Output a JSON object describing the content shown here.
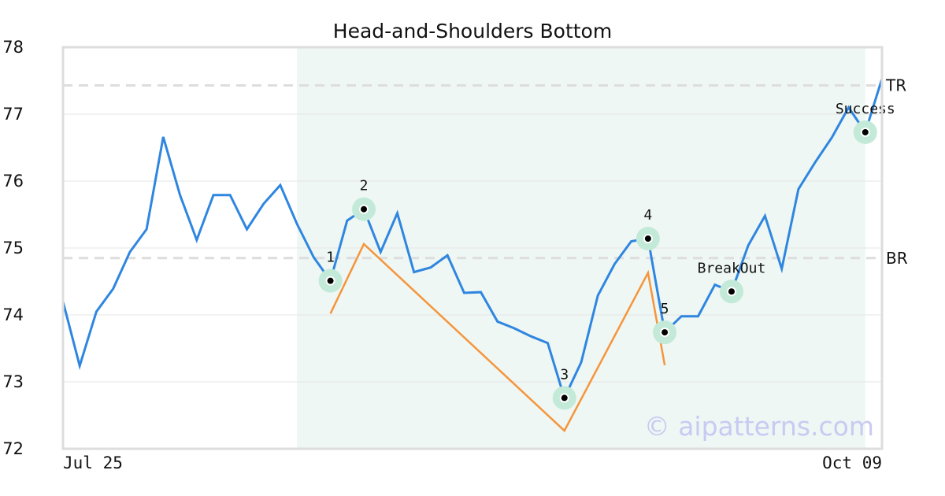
{
  "chart_data": {
    "type": "line",
    "title": "Head-and-Shoulders Bottom",
    "xlabel": "",
    "ylabel": "",
    "ylim": [
      72,
      78
    ],
    "y_ticks": [
      "72",
      "73",
      "74",
      "75",
      "76",
      "77",
      "78"
    ],
    "x_tick_labels": [
      "Jul 25",
      "Oct 09"
    ],
    "grid": "horizontal",
    "series": [
      {
        "color": "#2f86e0",
        "values": [
          74.2,
          73.24,
          74.05,
          74.39,
          74.94,
          75.28,
          76.66,
          75.79,
          75.12,
          75.79,
          75.79,
          75.28,
          75.66,
          75.94,
          75.36,
          74.86,
          74.51,
          75.41,
          75.58,
          74.94,
          75.52,
          74.64,
          74.71,
          74.89,
          74.33,
          74.34,
          73.9,
          73.8,
          73.68,
          73.58,
          72.76,
          73.29,
          74.29,
          74.76,
          75.1,
          75.14,
          73.74,
          73.98,
          73.98,
          74.45,
          74.35,
          75.04,
          75.48,
          74.69,
          75.88,
          76.28,
          76.65,
          77.1,
          76.73,
          77.53
        ]
      }
    ],
    "zigzag": {
      "color": "#f5953c",
      "points": [
        [
          16,
          74.02
        ],
        [
          18,
          75.06
        ],
        [
          30,
          72.27
        ],
        [
          35,
          74.63
        ],
        [
          36,
          73.25
        ]
      ]
    },
    "highlight_range": [
      14,
      48
    ],
    "levels": [
      {
        "label": "TR",
        "value": 77.43
      },
      {
        "label": "BR",
        "value": 74.85
      }
    ],
    "markers": [
      {
        "label": "1",
        "index": 16,
        "value": 74.51,
        "label_pos": "above"
      },
      {
        "label": "2",
        "index": 18,
        "value": 75.58,
        "label_pos": "above"
      },
      {
        "label": "3",
        "index": 30,
        "value": 72.76,
        "label_pos": "above"
      },
      {
        "label": "4",
        "index": 35,
        "value": 75.14,
        "label_pos": "above"
      },
      {
        "label": "5",
        "index": 36,
        "value": 73.74,
        "label_pos": "above"
      },
      {
        "label": "BreakOut",
        "index": 40,
        "value": 74.35,
        "label_pos": "above"
      },
      {
        "label": "Success",
        "index": 48,
        "value": 76.73,
        "label_pos": "above"
      }
    ],
    "colors": {
      "highlight": "#eef7f3",
      "marker_halo": "#c3ead8",
      "level_line": "#dddddd",
      "grid": "#e6e6e6",
      "frame": "#dddddd"
    },
    "watermark": "© aipatterns.com"
  }
}
